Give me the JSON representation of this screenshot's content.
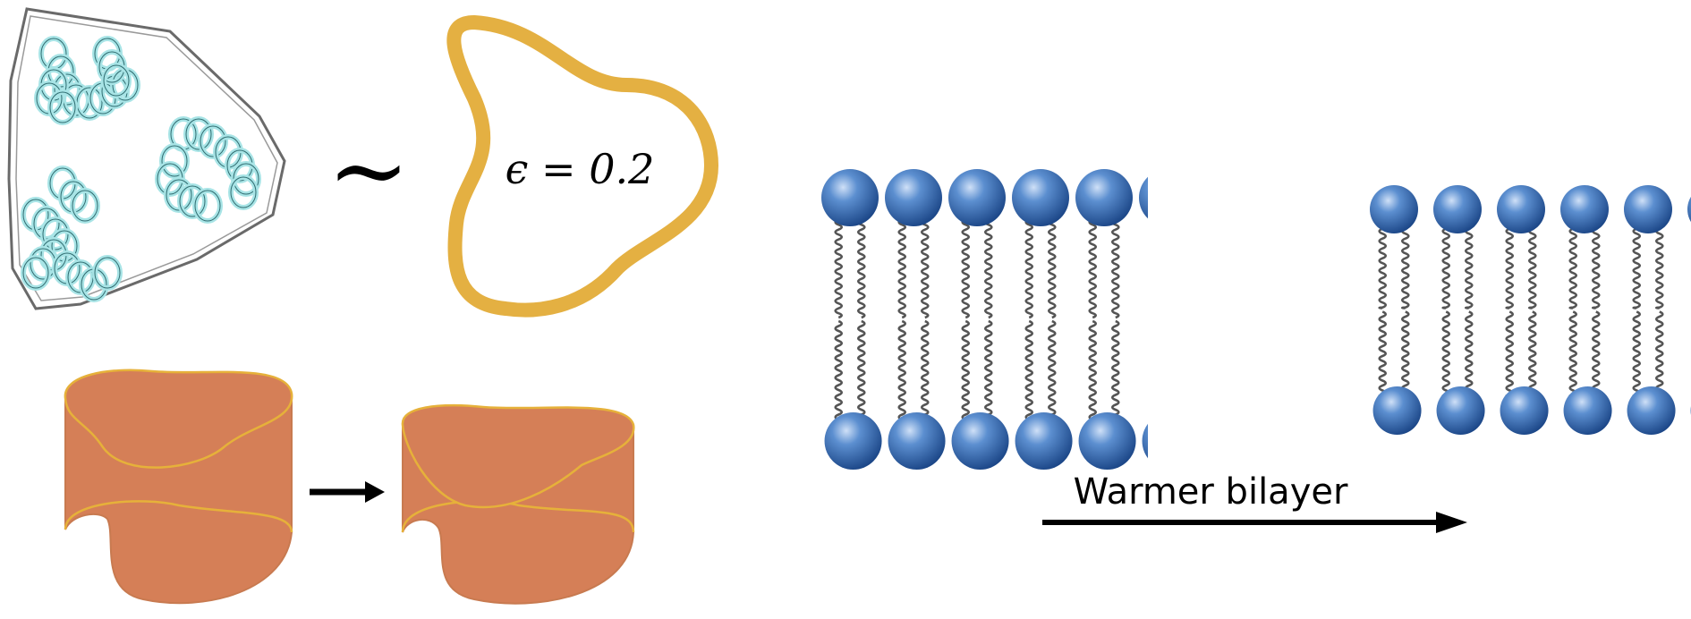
{
  "equation": {
    "tilde": "∼",
    "label": "ϵ = 0.2"
  },
  "bilayer": {
    "arrow_label": "Warmer bilayer"
  },
  "colors": {
    "outline_gold": "#e4b042",
    "helix_fill": "#a8e4e6",
    "helix_stroke": "#2e6c70",
    "cylinder_fill": "#d57f57",
    "cylinder_stroke": "#e6b13a",
    "head_light": "#8fb4e6",
    "head_dark": "#1f4f8e",
    "tail": "#555555",
    "arrow": "#000000"
  }
}
